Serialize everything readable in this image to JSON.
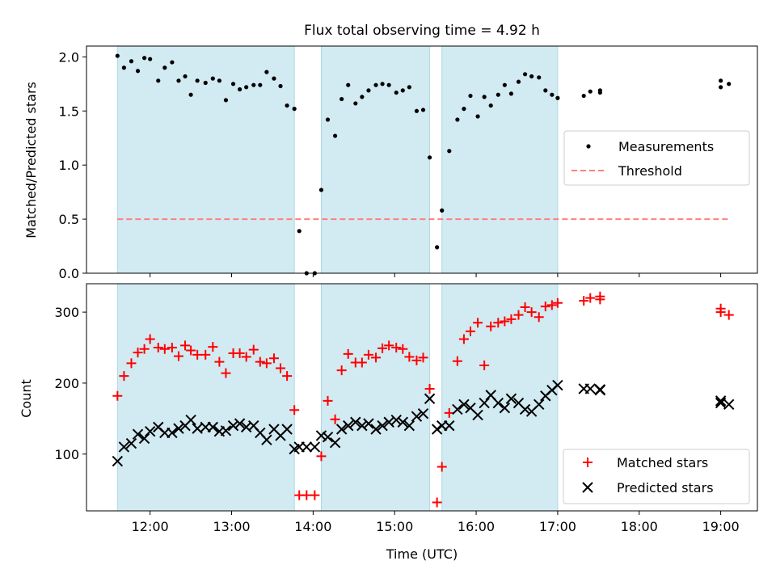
{
  "chart_data": [
    {
      "type": "scatter",
      "title": "Flux total observing time = 4.92 h",
      "xlabel": "",
      "ylabel": "Matched/Predicted stars",
      "xlim": [
        11.22,
        19.45
      ],
      "ylim": [
        0.0,
        2.1
      ],
      "yticks": [
        0.0,
        0.5,
        1.0,
        1.5,
        2.0
      ],
      "ytick_labels": [
        "0.0",
        "0.5",
        "1.0",
        "1.5",
        "2.0"
      ],
      "grid": false,
      "legend_position": "center-right",
      "shaded_intervals": [
        [
          11.6,
          13.77
        ],
        [
          14.1,
          15.43
        ],
        [
          15.58,
          17.0
        ]
      ],
      "shade_color": "#add8e6",
      "threshold": {
        "name": "Threshold",
        "value": 0.5,
        "x_range": [
          11.6,
          19.1
        ],
        "color": "#ff7f7f"
      },
      "series": [
        {
          "name": "Measurements",
          "color": "#000000",
          "x": [
            11.6,
            11.68,
            11.77,
            11.85,
            11.93,
            12.0,
            12.1,
            12.18,
            12.27,
            12.35,
            12.43,
            12.5,
            12.58,
            12.68,
            12.77,
            12.85,
            12.93,
            13.02,
            13.1,
            13.18,
            13.27,
            13.35,
            13.43,
            13.52,
            13.6,
            13.68,
            13.77,
            13.83,
            13.92,
            14.02,
            14.1,
            14.18,
            14.27,
            14.35,
            14.43,
            14.52,
            14.6,
            14.68,
            14.77,
            14.85,
            14.93,
            15.02,
            15.1,
            15.18,
            15.27,
            15.35,
            15.43,
            15.52,
            15.58,
            15.67,
            15.77,
            15.85,
            15.93,
            16.02,
            16.1,
            16.18,
            16.27,
            16.35,
            16.43,
            16.52,
            16.6,
            16.68,
            16.77,
            16.85,
            16.93,
            17.0,
            17.32,
            17.4,
            17.52,
            17.52,
            19.0,
            19.0,
            19.1
          ],
          "y": [
            2.01,
            1.9,
            1.96,
            1.87,
            1.99,
            1.98,
            1.78,
            1.9,
            1.95,
            1.78,
            1.82,
            1.65,
            1.78,
            1.76,
            1.8,
            1.78,
            1.6,
            1.75,
            1.7,
            1.72,
            1.74,
            1.74,
            1.86,
            1.8,
            1.73,
            1.55,
            1.52,
            0.39,
            0.0,
            0.0,
            0.77,
            1.42,
            1.27,
            1.61,
            1.74,
            1.57,
            1.63,
            1.69,
            1.74,
            1.75,
            1.74,
            1.67,
            1.69,
            1.72,
            1.5,
            1.51,
            1.07,
            0.24,
            0.58,
            1.13,
            1.42,
            1.52,
            1.64,
            1.45,
            1.63,
            1.55,
            1.65,
            1.74,
            1.66,
            1.77,
            1.84,
            1.82,
            1.81,
            1.69,
            1.65,
            1.62,
            1.64,
            1.68,
            1.67,
            1.69,
            1.72,
            1.78,
            1.75
          ]
        }
      ]
    },
    {
      "type": "scatter",
      "title": "",
      "xlabel": "Time (UTC)",
      "ylabel": "Count",
      "xlim": [
        11.22,
        19.45
      ],
      "ylim": [
        20,
        340
      ],
      "xticks": [
        12,
        13,
        14,
        15,
        16,
        17,
        18,
        19
      ],
      "xtick_labels": [
        "12:00",
        "13:00",
        "14:00",
        "15:00",
        "16:00",
        "17:00",
        "18:00",
        "19:00"
      ],
      "yticks": [
        100,
        200,
        300
      ],
      "ytick_labels": [
        "100",
        "200",
        "300"
      ],
      "grid": false,
      "legend_position": "bottom-right",
      "shaded_intervals": [
        [
          11.6,
          13.77
        ],
        [
          14.1,
          15.43
        ],
        [
          15.58,
          17.0
        ]
      ],
      "shade_color": "#add8e6",
      "series": [
        {
          "name": "Matched stars",
          "marker": "plus",
          "color": "#ff0000",
          "x": [
            11.6,
            11.68,
            11.77,
            11.85,
            11.93,
            12.0,
            12.1,
            12.18,
            12.27,
            12.35,
            12.43,
            12.5,
            12.58,
            12.68,
            12.77,
            12.85,
            12.93,
            13.02,
            13.1,
            13.18,
            13.27,
            13.35,
            13.43,
            13.52,
            13.6,
            13.68,
            13.77,
            13.83,
            13.92,
            14.02,
            14.1,
            14.18,
            14.27,
            14.35,
            14.43,
            14.52,
            14.6,
            14.68,
            14.77,
            14.85,
            14.93,
            15.02,
            15.1,
            15.18,
            15.27,
            15.35,
            15.43,
            15.52,
            15.58,
            15.67,
            15.77,
            15.85,
            15.93,
            16.02,
            16.1,
            16.18,
            16.27,
            16.35,
            16.43,
            16.52,
            16.6,
            16.68,
            16.77,
            16.85,
            16.93,
            17.0,
            17.32,
            17.4,
            17.52,
            17.52,
            19.0,
            19.0,
            19.1
          ],
          "y": [
            182,
            210,
            228,
            243,
            248,
            262,
            250,
            248,
            250,
            238,
            253,
            246,
            240,
            240,
            251,
            230,
            214,
            242,
            242,
            237,
            247,
            230,
            228,
            235,
            221,
            210,
            162,
            42,
            42,
            42,
            97,
            175,
            149,
            218,
            241,
            229,
            229,
            240,
            236,
            249,
            253,
            250,
            248,
            237,
            232,
            236,
            192,
            32,
            82,
            158,
            231,
            262,
            273,
            285,
            225,
            280,
            285,
            287,
            290,
            296,
            307,
            300,
            293,
            308,
            310,
            313,
            316,
            320,
            322,
            318,
            305,
            300,
            296
          ]
        },
        {
          "name": "Predicted stars",
          "marker": "x",
          "color": "#000000",
          "x": [
            11.6,
            11.68,
            11.77,
            11.85,
            11.93,
            12.0,
            12.1,
            12.18,
            12.27,
            12.35,
            12.43,
            12.5,
            12.58,
            12.68,
            12.77,
            12.85,
            12.93,
            13.02,
            13.1,
            13.18,
            13.27,
            13.35,
            13.43,
            13.52,
            13.6,
            13.68,
            13.77,
            13.83,
            13.92,
            14.02,
            14.1,
            14.18,
            14.27,
            14.35,
            14.43,
            14.52,
            14.6,
            14.68,
            14.77,
            14.85,
            14.93,
            15.02,
            15.1,
            15.18,
            15.27,
            15.35,
            15.43,
            15.52,
            15.58,
            15.67,
            15.77,
            15.85,
            15.93,
            16.02,
            16.1,
            16.18,
            16.27,
            16.35,
            16.43,
            16.52,
            16.6,
            16.68,
            16.77,
            16.85,
            16.93,
            17.0,
            17.32,
            17.4,
            17.52,
            17.52,
            19.0,
            19.0,
            19.1
          ],
          "y": [
            90,
            110,
            115,
            128,
            122,
            132,
            138,
            130,
            130,
            136,
            140,
            148,
            136,
            138,
            138,
            132,
            133,
            140,
            143,
            138,
            140,
            130,
            120,
            135,
            126,
            135,
            107,
            110,
            110,
            110,
            126,
            124,
            116,
            135,
            140,
            145,
            140,
            143,
            135,
            140,
            145,
            148,
            145,
            140,
            153,
            157,
            178,
            135,
            140,
            140,
            163,
            170,
            165,
            155,
            172,
            183,
            172,
            165,
            178,
            172,
            163,
            160,
            170,
            182,
            190,
            197,
            192,
            192,
            191,
            190,
            175,
            172,
            170
          ]
        }
      ]
    }
  ]
}
